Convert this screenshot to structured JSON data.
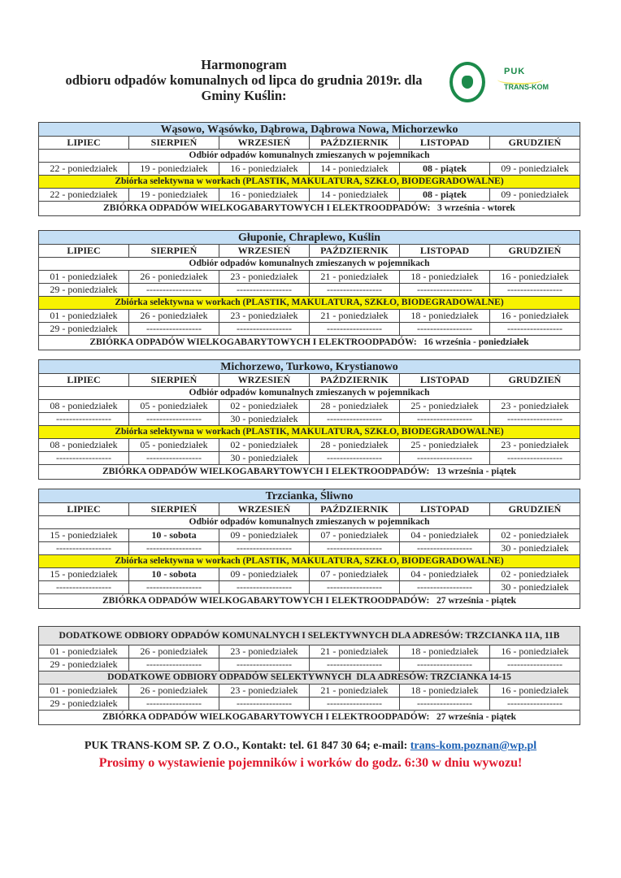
{
  "header": {
    "title_lines": [
      "Harmonogram",
      "odbioru odpadów komunalnych od lipca do grudnia 2019r. dla",
      "Gminy Kuślin:"
    ],
    "logo_text": [
      "PUK",
      "TRANS-KOM"
    ]
  },
  "months": [
    "LIPIEC",
    "SIERPIEŃ",
    "WRZESIEŃ",
    "PAŹDZIERNIK",
    "LISTOPAD",
    "GRUDZIEŃ"
  ],
  "mixed_label": "Odbiór odpadów komunalnych zmieszanych w pojemnikach",
  "selective_label": "Zbiórka selektywna w workach (PLASTIK, MAKULATURA, SZKŁO, BIODEGRADOWALNE)",
  "bulky_label": "ZBIÓRKA ODPADÓW WIELKOGABARYTOWYCH I ELEKTROODPADÓW:",
  "sections": [
    {
      "title": "Wąsowo, Wąsówko, Dąbrowa, Dąbrowa Nowa, Michorzewko",
      "mixed": [
        [
          "22 - poniedziałek",
          "19 - poniedziałek",
          "16 - poniedziałek",
          "14 - poniedziałek",
          {
            "text": "08 - piątek",
            "bold": true
          },
          "09 - poniedziałek"
        ]
      ],
      "selective": [
        [
          "22 - poniedziałek",
          "19 - poniedziałek",
          "16 - poniedziałek",
          "14 - poniedziałek",
          {
            "text": "08 - piątek",
            "bold": true
          },
          "09 - poniedziałek"
        ]
      ],
      "bulky_date": "3 września - wtorek"
    },
    {
      "title": "Głuponie, Chraplewo, Kuślin",
      "mixed": [
        [
          "01 - poniedziałek",
          "26 - poniedziałek",
          "23 - poniedziałek",
          "21 - poniedziałek",
          "18 - poniedziałek",
          "16 - poniedziałek"
        ],
        [
          "29 - poniedziałek",
          "-----------------",
          "-----------------",
          "-----------------",
          "-----------------",
          "-----------------"
        ]
      ],
      "selective": [
        [
          "01 - poniedziałek",
          "26 - poniedziałek",
          "23 - poniedziałek",
          "21 - poniedziałek",
          "18 - poniedziałek",
          "16 - poniedziałek"
        ],
        [
          "29 - poniedziałek",
          "-----------------",
          "-----------------",
          "-----------------",
          "-----------------",
          "-----------------"
        ]
      ],
      "bulky_date": "16 września - poniedziałek"
    },
    {
      "title": "Michorzewo, Turkowo, Krystianowo",
      "mixed": [
        [
          "08 - poniedziałek",
          "05 - poniedziałek",
          "02 - poniedziałek",
          "28 - poniedziałek",
          "25 - poniedziałek",
          "23 - poniedziałek"
        ],
        [
          "-----------------",
          "-----------------",
          "30 - poniedziałek",
          "-----------------",
          "-----------------",
          "-----------------"
        ]
      ],
      "selective": [
        [
          "08 - poniedziałek",
          "05 - poniedziałek",
          "02 - poniedziałek",
          "28 - poniedziałek",
          "25 - poniedziałek",
          "23 - poniedziałek"
        ],
        [
          "-----------------",
          "-----------------",
          "30 - poniedziałek",
          "-----------------",
          "-----------------",
          "-----------------"
        ]
      ],
      "bulky_date": "13 września - piątek"
    },
    {
      "title": "Trzcianka, Śliwno",
      "mixed": [
        [
          "15 - poniedziałek",
          {
            "text": "10 - sobota",
            "bold": true
          },
          "09 - poniedziałek",
          "07 - poniedziałek",
          "04 - poniedziałek",
          "02 - poniedziałek"
        ],
        [
          "-----------------",
          "-----------------",
          "-----------------",
          "-----------------",
          "-----------------",
          "30 - poniedziałek"
        ]
      ],
      "selective": [
        [
          "15 - poniedziałek",
          {
            "text": "10 - sobota",
            "bold": true
          },
          "09 - poniedziałek",
          "07 - poniedziałek",
          "04 - poniedziałek",
          "02 - poniedziałek"
        ],
        [
          "-----------------",
          "-----------------",
          "-----------------",
          "-----------------",
          "-----------------",
          "30 - poniedziałek"
        ]
      ],
      "bulky_date": "27 września - piątek"
    }
  ],
  "extra": {
    "title": "DODATKOWE ODBIORY ODPADÓW KOMUNALNYCH I SELEKTYWNYCH DLA ADRESÓW: TRZCIANKA 11A, 11B",
    "rows1": [
      [
        "01 - poniedziałek",
        "26 - poniedziałek",
        "23 - poniedziałek",
        "21 - poniedziałek",
        "18 - poniedziałek",
        "16 - poniedziałek"
      ],
      [
        "29 - poniedziałek",
        "-----------------",
        "-----------------",
        "-----------------",
        "-----------------",
        "-----------------"
      ]
    ],
    "subtitle": "DODATKOWE ODBIORY ODPADÓW SELEKTYWNYCH  DLA ADRESÓW: TRZCIANKA 14-15",
    "rows2": [
      [
        "01 - poniedziałek",
        "26 - poniedziałek",
        "23 - poniedziałek",
        "21 - poniedziałek",
        "18 - poniedziałek",
        "16 - poniedziałek"
      ],
      [
        "29 - poniedziałek",
        "-----------------",
        "-----------------",
        "-----------------",
        "-----------------",
        "-----------------"
      ]
    ],
    "bulky_date": "27 września - piątek"
  },
  "footer": {
    "contact": "PUK TRANS-KOM SP. Z O.O., Kontakt: tel. 61 847 30 64; e-mail: ",
    "email": "trans-kom.poznan@wp.pl",
    "notice": "Prosimy o wystawienie pojemników i worków do godz. 6:30 w dniu wywozu!"
  },
  "colors": {
    "section_header": "#c5dff5",
    "selective_row": "#f7f200",
    "extra_header": "#e3e3e3",
    "notice": "#e0182d",
    "link": "#1a5fb4"
  }
}
